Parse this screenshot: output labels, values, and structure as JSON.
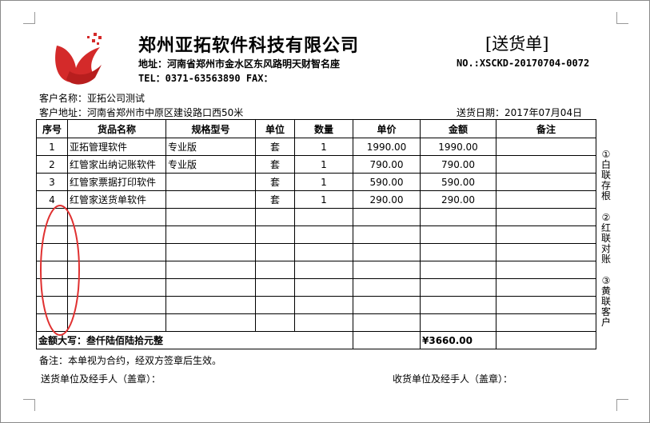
{
  "header": {
    "company": "郑州亚拓软件科技有限公司",
    "address": "地址：河南省郑州市金水区东风路明天财智名座",
    "tel": "TEL：0371-63563890 FAX：",
    "doc_title": "[送货单]",
    "doc_no": "NO.:XSCKD-20170704-0072",
    "brand_color": "#d42a2a"
  },
  "customer": {
    "name": "客户名称：亚拓公司测试",
    "address": "客户地址：河南省郑州市中原区建设路口西50米",
    "date": "送货日期：2017年07月04日"
  },
  "table": {
    "columns": [
      "序号",
      "货品名称",
      "规格型号",
      "单位",
      "数量",
      "单价",
      "金额",
      "备注"
    ],
    "rows": [
      [
        "1",
        "亚拓管理软件",
        "专业版",
        "套",
        "1",
        "1990.00",
        "1990.00",
        ""
      ],
      [
        "2",
        "红管家出纳记账软件",
        "专业版",
        "套",
        "1",
        "790.00",
        "790.00",
        ""
      ],
      [
        "3",
        "红管家票据打印软件",
        "",
        "套",
        "1",
        "590.00",
        "590.00",
        ""
      ],
      [
        "4",
        "红管家送货单软件",
        "",
        "套",
        "1",
        "290.00",
        "290.00",
        ""
      ]
    ],
    "empty_rows": 7,
    "total_label": "金额大写：叁仟陆佰陆拾元整",
    "total_amount": "¥3660.00"
  },
  "side_labels": [
    "①白联存根",
    "②红联对账",
    "③黄联客户"
  ],
  "footer": {
    "note": "备注：本单视为合约，经双方签章后生效。",
    "sender": "送货单位及经手人（盖章）：",
    "receiver": "收货单位及经手人（盖章）："
  }
}
